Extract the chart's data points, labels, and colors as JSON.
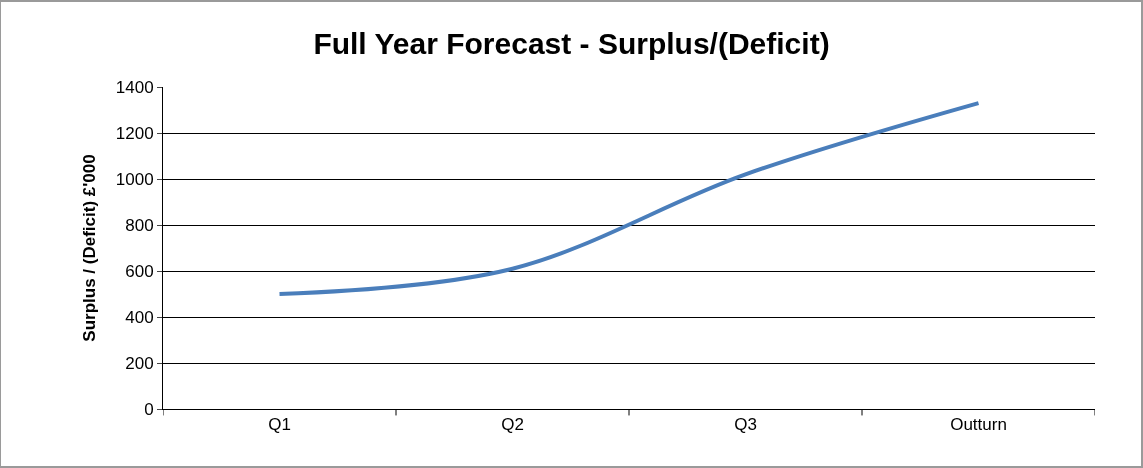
{
  "chart_data": {
    "type": "line",
    "title": "Full Year Forecast - Surplus/(Deficit)",
    "ylabel": "Surplus / (Deficit) £'000",
    "categories": [
      "Q1",
      "Q2",
      "Q3",
      "Outturn"
    ],
    "series": [
      {
        "color": "#4a7ebb",
        "values": [
          500,
          610,
          1020,
          1330
        ]
      }
    ],
    "ylim": [
      0,
      1400
    ],
    "yticks": [
      0,
      200,
      400,
      600,
      800,
      1000,
      1200,
      1400
    ],
    "grid": "y",
    "marker": "none",
    "line_style": "solid"
  }
}
